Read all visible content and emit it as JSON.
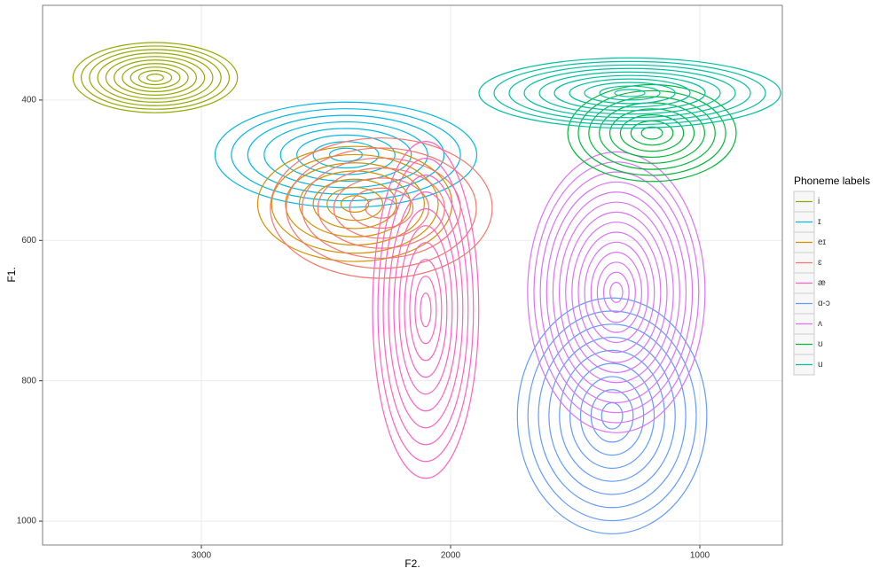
{
  "chart_data": {
    "type": "contour",
    "x_label": "F2.",
    "y_label": "F1.",
    "xlim": [
      3637,
      669
    ],
    "ylim": [
      265,
      1034
    ],
    "xticks": [
      3000,
      2000,
      1000
    ],
    "yticks": [
      400,
      600,
      800,
      1000
    ],
    "grid": true,
    "legend_title": "Phoneme labels",
    "legend_position": "right",
    "series": [
      {
        "name": "i",
        "color": "#93AA00",
        "x": 3185,
        "y": 368,
        "sx": 330,
        "sy": 50,
        "levels": 10
      },
      {
        "name": "ɪ",
        "color": "#00B9E3",
        "x": 2420,
        "y": 478,
        "sx": 525,
        "sy": 75,
        "levels": 8
      },
      {
        "name": "eɪ",
        "color": "#D39200",
        "x": 2384,
        "y": 548,
        "sx": 390,
        "sy": 82,
        "levels": 7
      },
      {
        "name": "ɛ",
        "color": "#F8766D",
        "x": 2278,
        "y": 554,
        "sx": 445,
        "sy": 100,
        "levels": 7
      },
      {
        "name": "æ",
        "color": "#FF61C3",
        "x": 2100,
        "y": 699,
        "sx": 213,
        "sy": 240,
        "levels": 10
      },
      {
        "name": "ɑ-ɔ",
        "color": "#619CFF",
        "x": 1352,
        "y": 850,
        "sx": 380,
        "sy": 168,
        "levels": 9
      },
      {
        "name": "ʌ",
        "color": "#DB72FB",
        "x": 1335,
        "y": 674,
        "sx": 356,
        "sy": 200,
        "levels": 14
      },
      {
        "name": "ʊ",
        "color": "#00BA38",
        "x": 1192,
        "y": 447,
        "sx": 338,
        "sy": 69,
        "levels": 8
      },
      {
        "name": "u",
        "color": "#00C19F",
        "x": 1281,
        "y": 390,
        "sx": 605,
        "sy": 50,
        "levels": 10
      }
    ]
  }
}
